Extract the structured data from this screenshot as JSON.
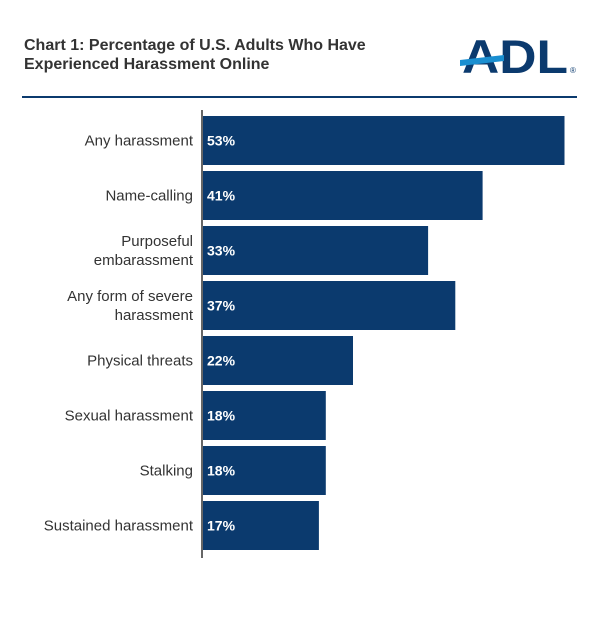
{
  "header": {
    "title_line1": "Chart 1: Percentage of U.S. Adults Who Have",
    "title_line2": "Experienced Harassment Online",
    "logo_text": "ADL",
    "logo_mark": "®"
  },
  "colors": {
    "bar": "#0b3a6e",
    "title": "#333333",
    "label": "#333333",
    "value_label": "#ffffff",
    "logo_dark": "#0b3a6e",
    "logo_light": "#1a8fd1"
  },
  "chart_data": {
    "type": "bar",
    "orientation": "horizontal",
    "title": "Chart 1: Percentage of U.S. Adults Who Have Experienced Harassment Online",
    "xlabel": "",
    "ylabel": "",
    "xlim": [
      0,
      60
    ],
    "grid": false,
    "legend": "none",
    "categories": [
      [
        "Any harassment"
      ],
      [
        "Name-calling"
      ],
      [
        "Purposeful",
        "embarassment"
      ],
      [
        "Any form of severe",
        "harassment"
      ],
      [
        "Physical threats"
      ],
      [
        "Sexual harassment"
      ],
      [
        "Stalking"
      ],
      [
        "Sustained harassment"
      ]
    ],
    "values": [
      53,
      41,
      33,
      37,
      22,
      18,
      18,
      17
    ],
    "value_labels": [
      "53%",
      "41%",
      "33%",
      "37%",
      "22%",
      "18%",
      "18%",
      "17%"
    ]
  }
}
